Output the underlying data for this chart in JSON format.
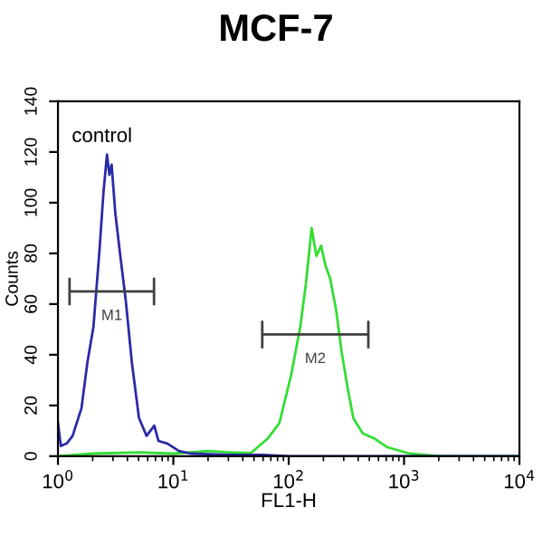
{
  "chart_data": {
    "type": "line",
    "title": "MCF-7",
    "xlabel": "FL1-H",
    "ylabel": "Counts",
    "log": "x",
    "xlim": [
      1,
      10000
    ],
    "ylim": [
      0,
      140
    ],
    "xticks": [
      {
        "value": 1,
        "label": "10$^{0}$"
      },
      {
        "value": 10,
        "label": "10$^{1}$"
      },
      {
        "value": 100,
        "label": "10$^{2}$"
      },
      {
        "value": 1000,
        "label": "10$^{3}$"
      },
      {
        "value": 10000,
        "label": "10$^{4}$"
      }
    ],
    "yticks": [
      0,
      20,
      40,
      60,
      80,
      100,
      120,
      140
    ],
    "grid": false,
    "legend": false,
    "marker": "none",
    "line_style": "solid",
    "annotations": [
      "control"
    ],
    "series": [
      {
        "color": "#33dd33",
        "x": [
          1,
          2,
          5,
          10,
          20,
          30,
          46.8,
          66,
          83,
          105,
          126,
          141,
          158,
          174,
          191,
          209,
          229,
          257,
          288,
          324,
          363,
          437,
          550,
          708,
          1120,
          2040,
          10000
        ],
        "values": [
          0,
          1,
          1.5,
          1,
          2,
          1.5,
          1.2,
          7,
          13,
          32,
          51,
          68,
          90,
          79,
          83,
          75,
          70,
          58,
          41,
          27,
          15,
          9,
          7,
          3.6,
          1,
          0,
          0
        ]
      },
      {
        "color": "#2a2aa8",
        "x": [
          1,
          1.06,
          1.19,
          1.34,
          1.6,
          1.8,
          2.03,
          2.28,
          2.48,
          2.66,
          2.79,
          2.92,
          3.14,
          3.45,
          3.88,
          4.37,
          5.04,
          5.86,
          6.84,
          7.43,
          8.87,
          11.2,
          14.2,
          30,
          60,
          100,
          1000,
          10000
        ],
        "values": [
          13,
          4,
          5,
          8,
          19,
          37,
          51,
          80,
          104,
          119,
          111,
          115,
          96,
          80,
          61,
          37,
          15,
          8,
          12,
          6,
          5,
          2,
          1,
          0.5,
          0.5,
          0,
          0,
          0
        ]
      },
      {
        "name": "M1",
        "color": "#404040",
        "x": [
          1.26,
          1.26,
          1.26,
          6.8,
          6.8,
          6.8
        ],
        "values": [
          60,
          70,
          65,
          65,
          70,
          60
        ]
      },
      {
        "name": "M2",
        "color": "#404040",
        "x": [
          59,
          59,
          59,
          490,
          490,
          490
        ],
        "values": [
          43,
          53,
          48,
          48,
          53,
          43
        ]
      }
    ]
  }
}
